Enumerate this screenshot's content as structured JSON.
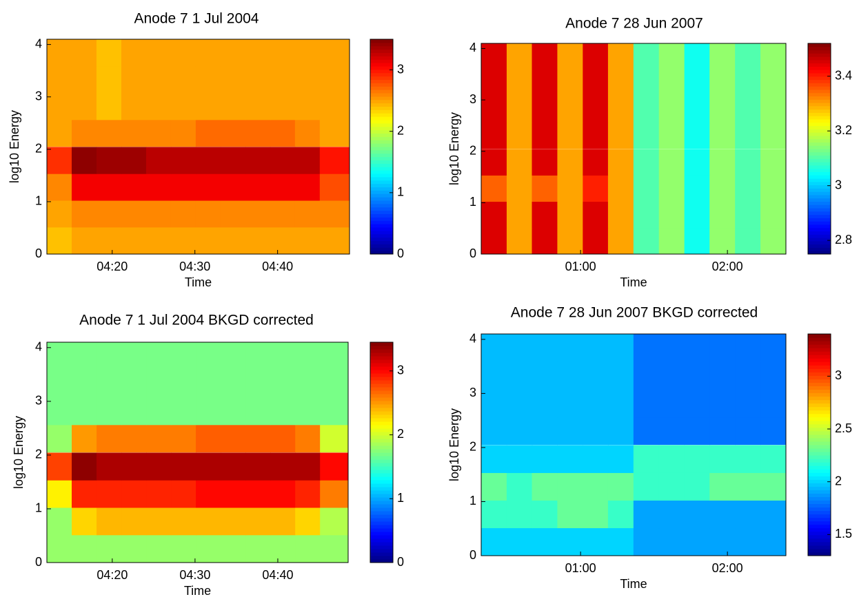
{
  "chart_data": [
    {
      "type": "heatmap",
      "title": "Anode 7 1 Jul 2004",
      "xlabel": "Time",
      "ylabel": "log10 Energy",
      "colormap": "jet",
      "x": [
        253.6,
        256.6,
        259.6,
        262.6,
        265.6,
        268.6,
        271.6,
        274.6,
        277.6,
        280.6,
        283.6,
        286.6
      ],
      "y": [
        0.26,
        0.77,
        1.28,
        1.79,
        2.31,
        2.82,
        3.33,
        3.84
      ],
      "values": [
        [
          2.4,
          2.5,
          2.5,
          2.5,
          2.5,
          2.5,
          2.5,
          2.5,
          2.5,
          2.5,
          2.5,
          2.5
        ],
        [
          2.5,
          2.6,
          2.6,
          2.6,
          2.6,
          2.6,
          2.6,
          2.6,
          2.6,
          2.6,
          2.6,
          2.6
        ],
        [
          2.6,
          3.1,
          3.1,
          3.1,
          3.1,
          3.1,
          3.1,
          3.1,
          3.1,
          3.1,
          3.1,
          2.8
        ],
        [
          2.9,
          3.45,
          3.4,
          3.4,
          3.3,
          3.3,
          3.3,
          3.3,
          3.3,
          3.3,
          3.3,
          3.0
        ],
        [
          2.5,
          2.6,
          2.6,
          2.6,
          2.6,
          2.6,
          2.7,
          2.7,
          2.7,
          2.7,
          2.6,
          2.5
        ],
        [
          2.5,
          2.5,
          2.4,
          2.5,
          2.5,
          2.5,
          2.5,
          2.5,
          2.5,
          2.5,
          2.5,
          2.5
        ],
        [
          2.5,
          2.5,
          2.4,
          2.5,
          2.5,
          2.5,
          2.5,
          2.5,
          2.5,
          2.5,
          2.5,
          2.5
        ],
        [
          2.5,
          2.5,
          2.4,
          2.5,
          2.5,
          2.5,
          2.5,
          2.5,
          2.5,
          2.5,
          2.5,
          2.5
        ]
      ],
      "xlim": [
        252.1,
        288.7
      ],
      "xticks": [
        {
          "value": 260,
          "label": "04:20"
        },
        {
          "value": 270,
          "label": "04:30"
        },
        {
          "value": 280,
          "label": "04:40"
        }
      ],
      "ylim": [
        0,
        4.1
      ],
      "yticks": [
        0,
        1,
        2,
        3,
        4
      ],
      "clim": [
        0,
        3.5
      ],
      "cticks": [
        0,
        1,
        2,
        3
      ]
    },
    {
      "type": "heatmap",
      "title": "Anode 7 28 Jun 2007",
      "xlabel": "Time",
      "ylabel": "log10 Energy",
      "colormap": "jet",
      "x": [
        24.6,
        35.0,
        45.3,
        55.7,
        66.1,
        76.4,
        86.8,
        97.2,
        107.6,
        117.9,
        128.3,
        138.7
      ],
      "y": [
        0.26,
        0.77,
        1.28,
        1.79,
        2.31,
        2.82,
        3.33,
        3.84
      ],
      "values": [
        [
          3.45,
          3.3,
          3.45,
          3.3,
          3.45,
          3.3,
          3.1,
          3.15,
          3.05,
          3.15,
          3.1,
          3.15
        ],
        [
          3.45,
          3.3,
          3.45,
          3.3,
          3.45,
          3.3,
          3.1,
          3.15,
          3.05,
          3.15,
          3.1,
          3.15
        ],
        [
          3.35,
          3.3,
          3.35,
          3.3,
          3.4,
          3.3,
          3.1,
          3.15,
          3.05,
          3.15,
          3.1,
          3.15
        ],
        [
          3.45,
          3.3,
          3.45,
          3.3,
          3.45,
          3.3,
          3.1,
          3.15,
          3.05,
          3.15,
          3.1,
          3.15
        ],
        [
          3.45,
          3.3,
          3.45,
          3.3,
          3.45,
          3.3,
          3.1,
          3.15,
          3.05,
          3.15,
          3.1,
          3.15
        ],
        [
          3.45,
          3.3,
          3.45,
          3.3,
          3.45,
          3.3,
          3.1,
          3.15,
          3.05,
          3.15,
          3.1,
          3.15
        ],
        [
          3.45,
          3.3,
          3.45,
          3.3,
          3.45,
          3.3,
          3.1,
          3.15,
          3.05,
          3.15,
          3.1,
          3.15
        ],
        [
          3.45,
          3.3,
          3.45,
          3.3,
          3.45,
          3.3,
          3.1,
          3.15,
          3.05,
          3.15,
          3.1,
          3.15
        ]
      ],
      "xlim": [
        19.4,
        143.9
      ],
      "xticks": [
        {
          "value": 60,
          "label": "01:00"
        },
        {
          "value": 120,
          "label": "02:00"
        }
      ],
      "ylim": [
        0,
        4.1
      ],
      "yticks": [
        0,
        1,
        2,
        3,
        4
      ],
      "clim": [
        2.75,
        3.52
      ],
      "cticks": [
        2.8,
        3,
        3.2,
        3.4
      ]
    },
    {
      "type": "heatmap",
      "title": "Anode 7 1 Jul 2004 BKGD corrected",
      "xlabel": "Time",
      "ylabel": "log10 Energy",
      "colormap": "jet",
      "x": [
        253.6,
        256.6,
        259.6,
        262.6,
        265.6,
        268.6,
        271.6,
        274.6,
        277.6,
        280.6,
        283.6,
        286.6
      ],
      "y": [
        0.26,
        0.77,
        1.28,
        1.79,
        2.31,
        2.82,
        3.33,
        3.84
      ],
      "values": [
        [
          1.8,
          1.8,
          1.8,
          1.8,
          1.8,
          1.8,
          1.8,
          1.8,
          1.8,
          1.8,
          1.8,
          1.8
        ],
        [
          1.8,
          2.3,
          2.4,
          2.4,
          2.4,
          2.4,
          2.4,
          2.4,
          2.4,
          2.4,
          2.3,
          1.9
        ],
        [
          2.2,
          2.9,
          2.9,
          2.9,
          2.9,
          2.9,
          3.0,
          3.0,
          3.0,
          3.0,
          2.9,
          2.6
        ],
        [
          2.8,
          3.4,
          3.3,
          3.3,
          3.3,
          3.3,
          3.3,
          3.3,
          3.3,
          3.3,
          3.3,
          3.0
        ],
        [
          1.8,
          2.5,
          2.6,
          2.6,
          2.6,
          2.6,
          2.7,
          2.7,
          2.7,
          2.7,
          2.6,
          2.0
        ],
        [
          1.7,
          1.7,
          1.7,
          1.7,
          1.7,
          1.7,
          1.7,
          1.7,
          1.7,
          1.7,
          1.7,
          1.7
        ],
        [
          1.7,
          1.7,
          1.7,
          1.7,
          1.7,
          1.7,
          1.7,
          1.7,
          1.7,
          1.7,
          1.7,
          1.7
        ],
        [
          1.7,
          1.7,
          1.7,
          1.7,
          1.7,
          1.7,
          1.7,
          1.7,
          1.7,
          1.7,
          1.7,
          1.7
        ]
      ],
      "xlim": [
        252.1,
        288.5
      ],
      "xticks": [
        {
          "value": 260,
          "label": "04:20"
        },
        {
          "value": 270,
          "label": "04:30"
        },
        {
          "value": 280,
          "label": "04:40"
        }
      ],
      "ylim": [
        0,
        4.1
      ],
      "yticks": [
        0,
        1,
        2,
        3,
        4
      ],
      "clim": [
        0,
        3.45
      ],
      "cticks": [
        0,
        1,
        2,
        3
      ]
    },
    {
      "type": "heatmap",
      "title": "Anode 7 28 Jun 2007 BKGD corrected",
      "xlabel": "Time",
      "ylabel": "log10 Energy",
      "colormap": "jet",
      "x": [
        24.6,
        35.0,
        45.3,
        55.7,
        66.1,
        76.4,
        86.8,
        97.2,
        107.6,
        117.9,
        128.3,
        138.7
      ],
      "y": [
        0.26,
        0.77,
        1.28,
        1.79,
        2.31,
        2.82,
        3.33,
        3.84
      ],
      "values": [
        [
          2.0,
          2.0,
          2.0,
          2.0,
          2.0,
          2.0,
          1.9,
          1.9,
          1.9,
          1.9,
          1.9,
          1.9
        ],
        [
          2.2,
          2.2,
          2.2,
          2.3,
          2.3,
          2.2,
          1.9,
          1.9,
          1.9,
          1.9,
          1.9,
          1.9
        ],
        [
          2.3,
          2.2,
          2.3,
          2.3,
          2.3,
          2.3,
          2.2,
          2.2,
          2.2,
          2.3,
          2.3,
          2.3
        ],
        [
          2.0,
          2.0,
          2.0,
          2.0,
          2.0,
          2.0,
          2.2,
          2.2,
          2.2,
          2.2,
          2.2,
          2.2
        ],
        [
          1.95,
          1.95,
          1.95,
          1.95,
          1.95,
          1.95,
          1.8,
          1.8,
          1.8,
          1.8,
          1.8,
          1.8
        ],
        [
          1.95,
          1.95,
          1.95,
          1.95,
          1.95,
          1.95,
          1.8,
          1.8,
          1.8,
          1.8,
          1.8,
          1.8
        ],
        [
          1.95,
          1.95,
          1.95,
          1.95,
          1.95,
          1.95,
          1.8,
          1.8,
          1.8,
          1.8,
          1.8,
          1.8
        ],
        [
          1.95,
          1.95,
          1.95,
          1.95,
          1.95,
          1.95,
          1.8,
          1.8,
          1.8,
          1.8,
          1.8,
          1.8
        ]
      ],
      "xlim": [
        19.4,
        143.9
      ],
      "xticks": [
        {
          "value": 60,
          "label": "01:00"
        },
        {
          "value": 120,
          "label": "02:00"
        }
      ],
      "ylim": [
        0,
        4.1
      ],
      "yticks": [
        0,
        1,
        2,
        3,
        4
      ],
      "clim": [
        1.3,
        3.4
      ],
      "cticks": [
        1.5,
        2,
        2.5,
        3
      ]
    }
  ]
}
